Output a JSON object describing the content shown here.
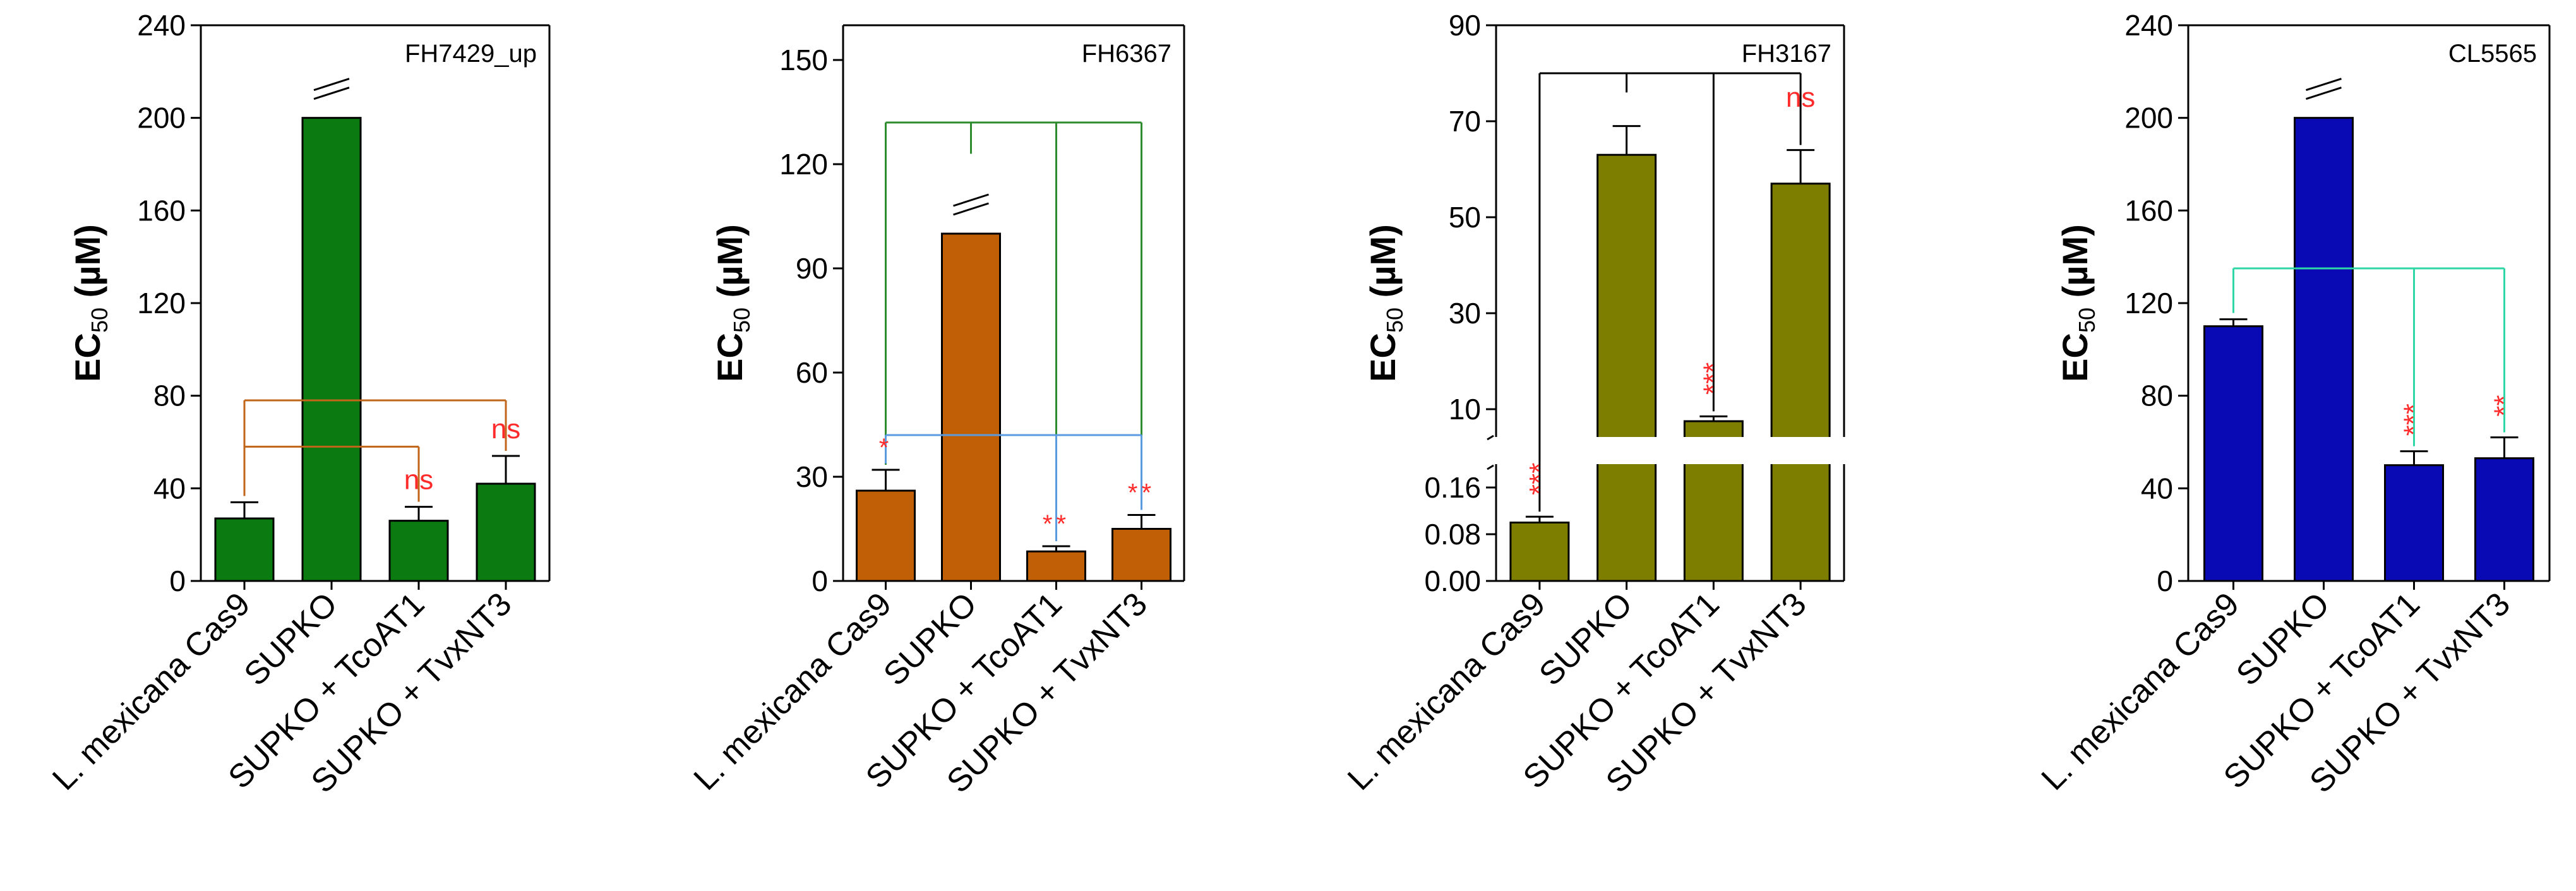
{
  "chart_data": [
    {
      "type": "bar",
      "title": "FH7429_up",
      "ylabel": "EC50 (µM)",
      "ylabel_main": "EC",
      "ylabel_sub": "50",
      "ylabel_unit": " (µM)",
      "categories": [
        "L. mexicana Cas9",
        "SUPKO",
        "SUPKO + TcoAT1",
        "SUPKO + TvxNT3"
      ],
      "values": [
        27,
        200,
        26,
        42
      ],
      "errors": [
        7,
        0,
        6,
        12
      ],
      "ylim": [
        0,
        240
      ],
      "yticks": [
        0,
        40,
        80,
        120,
        160,
        200,
        240
      ],
      "bar_color": "#0b7a10",
      "bracket_color": "#c0651a",
      "truncated": [
        1
      ],
      "significance": [
        "",
        "",
        "ns",
        "ns"
      ],
      "brackets": [
        {
          "from": 0,
          "to": [
            2
          ],
          "level": 58
        },
        {
          "from": 0,
          "to": [
            3
          ],
          "level": 78
        }
      ]
    },
    {
      "type": "bar",
      "title": "FH6367",
      "ylabel": "EC50 (µM)",
      "ylabel_main": "EC",
      "ylabel_sub": "50",
      "ylabel_unit": " (µM)",
      "categories": [
        "L. mexicana Cas9",
        "SUPKO",
        "SUPKO + TcoAT1",
        "SUPKO + TvxNT3"
      ],
      "values": [
        26,
        100,
        8.5,
        15
      ],
      "errors": [
        6,
        0,
        1.5,
        4
      ],
      "ylim": [
        0,
        160
      ],
      "yticks": [
        0,
        30,
        60,
        90,
        120,
        150
      ],
      "bar_color": "#c05f06",
      "truncated": [
        1
      ],
      "significance": [
        "*",
        "",
        "**",
        "**"
      ],
      "brackets": [
        {
          "from": 1,
          "to": [
            0,
            2,
            3
          ],
          "level": 132,
          "color": "#2e8b2e",
          "stem_top": 123
        },
        {
          "from": 0,
          "to": [
            2,
            3
          ],
          "level": 42,
          "color": "#5a9be0"
        }
      ]
    },
    {
      "type": "bar",
      "title": "FH3167",
      "ylabel": "EC50 (µM)",
      "ylabel_main": "EC",
      "ylabel_sub": "50",
      "ylabel_unit": " (µM)",
      "categories": [
        "L. mexicana Cas9",
        "SUPKO",
        "SUPKO + TcoAT1",
        "SUPKO + TvxNT3"
      ],
      "values": [
        0.1,
        63,
        7.5,
        57
      ],
      "errors": [
        0.01,
        6,
        1,
        7
      ],
      "axis_break": {
        "lower": [
          0,
          0.2
        ],
        "upper": [
          0,
          90
        ]
      },
      "yticks_lower": [
        "0.00",
        "0.08",
        "0.16"
      ],
      "yticks_upper": [
        "10",
        "30",
        "50",
        "70",
        "90"
      ],
      "bar_color": "#7d7d00",
      "bracket_color": "#000000",
      "significance": [
        "***",
        "",
        "***",
        "ns"
      ],
      "brackets": [
        {
          "from": 1,
          "to": [
            0,
            2,
            3
          ],
          "level": 80,
          "stem_top": 76
        }
      ]
    },
    {
      "type": "bar",
      "title": "CL5565",
      "ylabel": "EC50 (µM)",
      "ylabel_main": "EC",
      "ylabel_sub": "50",
      "ylabel_unit": " (µM)",
      "categories": [
        "L. mexicana Cas9",
        "SUPKO",
        "SUPKO + TcoAT1",
        "SUPKO + TvxNT3"
      ],
      "values": [
        110,
        200,
        50,
        53
      ],
      "errors": [
        3,
        0,
        6,
        9
      ],
      "ylim": [
        0,
        240
      ],
      "yticks": [
        0,
        40,
        80,
        120,
        160,
        200,
        240
      ],
      "bar_color": "#0a0ab4",
      "bracket_color": "#2fd6a6",
      "truncated": [
        1
      ],
      "significance": [
        "",
        "",
        "***",
        "**"
      ],
      "brackets": [
        {
          "from": 0,
          "to": [
            2,
            3
          ],
          "level": 135
        }
      ]
    }
  ]
}
